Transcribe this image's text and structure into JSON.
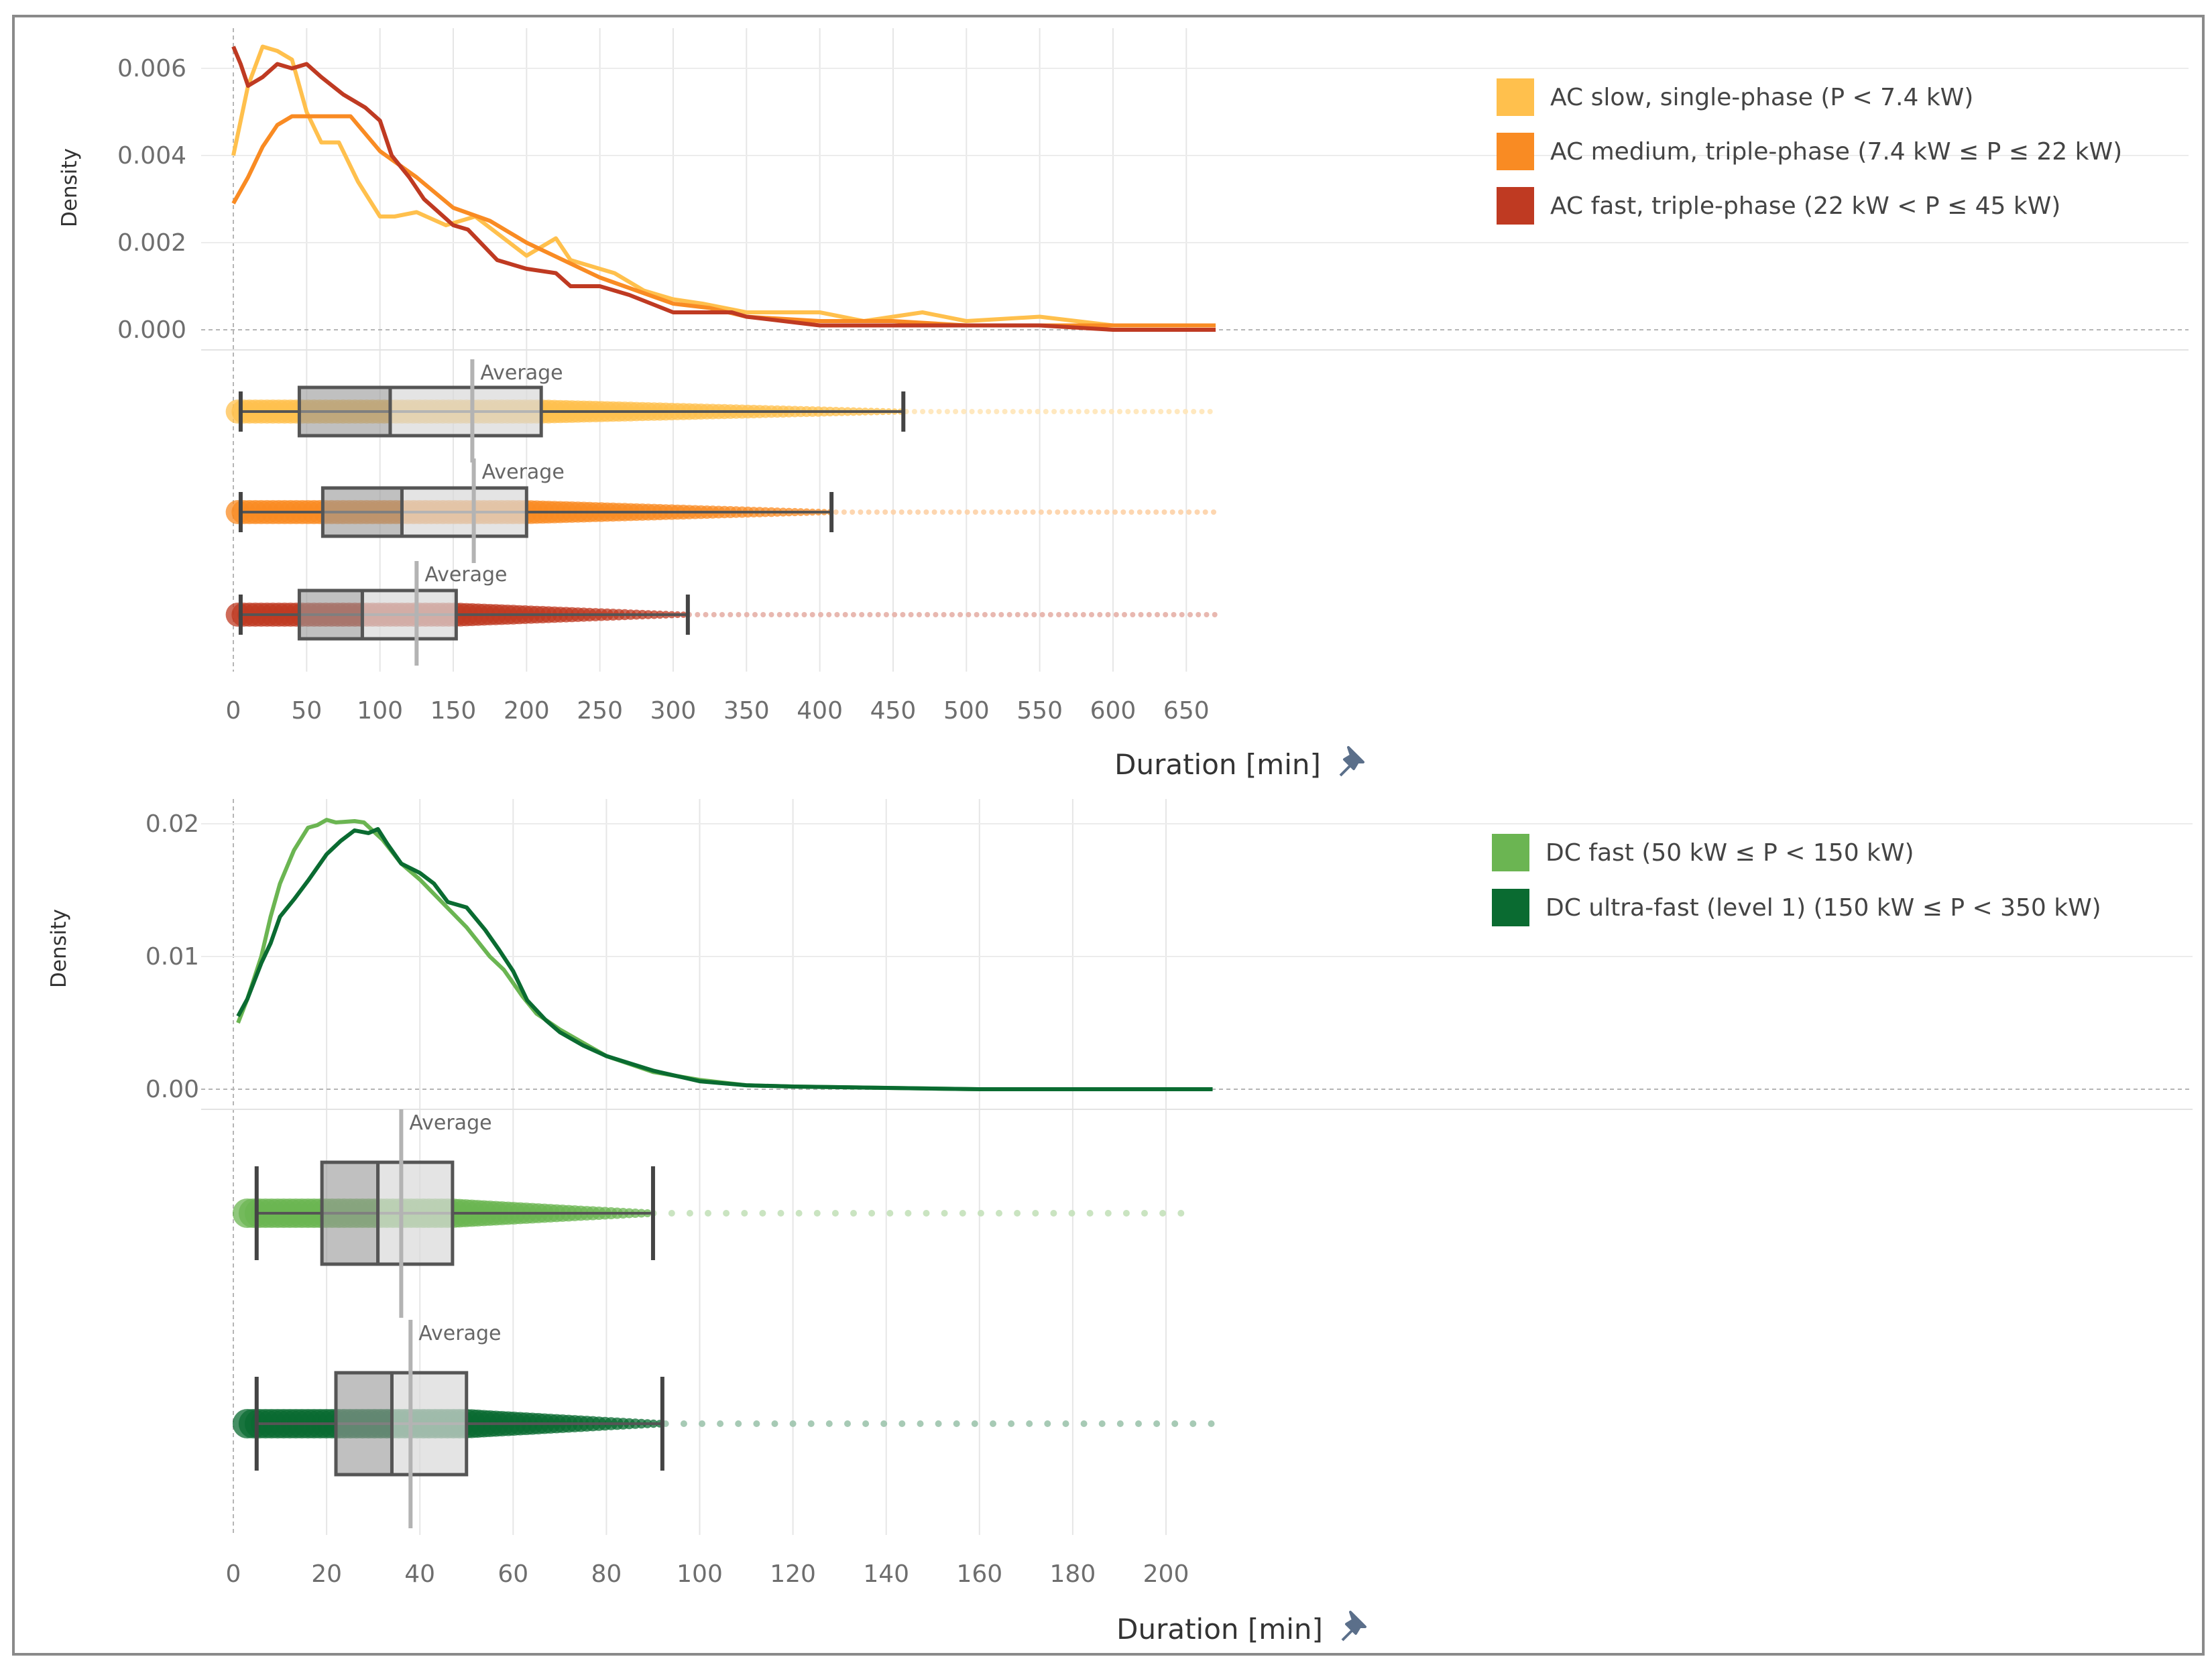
{
  "chart_data": [
    {
      "type": "line",
      "xlabel": "Duration [min]",
      "ylabel": "Density",
      "xlim": [
        0,
        670
      ],
      "ylim": [
        0,
        0.0065
      ],
      "x_ticks": [
        "0",
        "50",
        "100",
        "150",
        "200",
        "250",
        "300",
        "350",
        "400",
        "450",
        "500",
        "550",
        "600",
        "650"
      ],
      "y_ticks": [
        "0.000",
        "0.002",
        "0.004",
        "0.006"
      ],
      "grid": true,
      "legend_position": "top-right",
      "average_label": "Average",
      "series": [
        {
          "name": "AC slow, single-phase (P < 7.4 kW)",
          "color": "#FFC04D",
          "points": [
            [
              0,
              0.004
            ],
            [
              10,
              0.0056
            ],
            [
              20,
              0.0065
            ],
            [
              30,
              0.0064
            ],
            [
              40,
              0.0062
            ],
            [
              50,
              0.005
            ],
            [
              60,
              0.0043
            ],
            [
              72,
              0.0043
            ],
            [
              85,
              0.0034
            ],
            [
              100,
              0.0026
            ],
            [
              110,
              0.0026
            ],
            [
              125,
              0.0027
            ],
            [
              145,
              0.0024
            ],
            [
              165,
              0.0026
            ],
            [
              200,
              0.0017
            ],
            [
              220,
              0.0021
            ],
            [
              230,
              0.0016
            ],
            [
              260,
              0.0013
            ],
            [
              280,
              0.0009
            ],
            [
              300,
              0.0007
            ],
            [
              320,
              0.0006
            ],
            [
              350,
              0.0004
            ],
            [
              400,
              0.0004
            ],
            [
              430,
              0.0002
            ],
            [
              470,
              0.0004
            ],
            [
              500,
              0.0002
            ],
            [
              550,
              0.0003
            ],
            [
              600,
              0.0001
            ],
            [
              650,
              0.0001
            ],
            [
              670,
              0.0001
            ]
          ],
          "box": {
            "whisker_low": 5,
            "q1": 45,
            "median": 107,
            "q3": 210,
            "whisker_high": 457,
            "average": 163
          },
          "dots_until": 670
        },
        {
          "name": "AC medium, triple-phase (7.4 kW ≤ P ≤ 22 kW)",
          "color": "#F98B23",
          "points": [
            [
              0,
              0.0029
            ],
            [
              10,
              0.0035
            ],
            [
              20,
              0.0042
            ],
            [
              30,
              0.0047
            ],
            [
              40,
              0.0049
            ],
            [
              50,
              0.0049
            ],
            [
              70,
              0.0049
            ],
            [
              80,
              0.0049
            ],
            [
              100,
              0.0041
            ],
            [
              125,
              0.0035
            ],
            [
              150,
              0.0028
            ],
            [
              175,
              0.0025
            ],
            [
              200,
              0.002
            ],
            [
              225,
              0.0016
            ],
            [
              250,
              0.0012
            ],
            [
              275,
              0.0009
            ],
            [
              300,
              0.0006
            ],
            [
              325,
              0.0005
            ],
            [
              350,
              0.0003
            ],
            [
              400,
              0.0002
            ],
            [
              450,
              0.0002
            ],
            [
              500,
              0.0001
            ],
            [
              550,
              0.0001
            ],
            [
              600,
              0.0001
            ],
            [
              650,
              0.0001
            ],
            [
              670,
              0.0001
            ]
          ],
          "box": {
            "whisker_low": 5,
            "q1": 61,
            "median": 115,
            "q3": 200,
            "whisker_high": 408,
            "average": 164
          },
          "dots_until": 670
        },
        {
          "name": "AC fast, triple-phase (22 kW < P ≤ 45 kW)",
          "color": "#BF3A22",
          "points": [
            [
              0,
              0.0065
            ],
            [
              5,
              0.0061
            ],
            [
              10,
              0.0056
            ],
            [
              20,
              0.0058
            ],
            [
              30,
              0.0061
            ],
            [
              40,
              0.006
            ],
            [
              50,
              0.0061
            ],
            [
              60,
              0.0058
            ],
            [
              75,
              0.0054
            ],
            [
              90,
              0.0051
            ],
            [
              100,
              0.0048
            ],
            [
              108,
              0.004
            ],
            [
              120,
              0.0035
            ],
            [
              130,
              0.003
            ],
            [
              150,
              0.0024
            ],
            [
              160,
              0.0023
            ],
            [
              180,
              0.0016
            ],
            [
              200,
              0.0014
            ],
            [
              220,
              0.0013
            ],
            [
              230,
              0.001
            ],
            [
              250,
              0.001
            ],
            [
              270,
              0.0008
            ],
            [
              300,
              0.0004
            ],
            [
              340,
              0.0004
            ],
            [
              350,
              0.0003
            ],
            [
              400,
              0.0001
            ],
            [
              450,
              0.0001
            ],
            [
              500,
              0.0001
            ],
            [
              550,
              0.0001
            ],
            [
              600,
              0.0
            ],
            [
              650,
              0.0
            ],
            [
              670,
              0.0
            ]
          ],
          "box": {
            "whisker_low": 5,
            "q1": 45,
            "median": 88,
            "q3": 152,
            "whisker_high": 310,
            "average": 125
          },
          "dots_until": 670
        }
      ]
    },
    {
      "type": "line",
      "xlabel": "Duration [min]",
      "ylabel": "Density",
      "xlim": [
        0,
        210
      ],
      "ylim": [
        0,
        0.0205
      ],
      "x_ticks": [
        "0",
        "20",
        "40",
        "60",
        "80",
        "100",
        "120",
        "140",
        "160",
        "180",
        "200"
      ],
      "y_ticks": [
        "0.00",
        "0.01",
        "0.02"
      ],
      "grid": true,
      "legend_position": "top-right",
      "average_label": "Average",
      "series": [
        {
          "name": "DC fast (50 kW ≤ P < 150 kW)",
          "color": "#6BB552",
          "points": [
            [
              1,
              0.005
            ],
            [
              3,
              0.0068
            ],
            [
              6,
              0.01
            ],
            [
              8,
              0.013
            ],
            [
              10,
              0.0155
            ],
            [
              13,
              0.018
            ],
            [
              16,
              0.0197
            ],
            [
              18,
              0.0199
            ],
            [
              20,
              0.0203
            ],
            [
              22,
              0.0201
            ],
            [
              26,
              0.0202
            ],
            [
              28,
              0.0201
            ],
            [
              32,
              0.0188
            ],
            [
              36,
              0.017
            ],
            [
              40,
              0.0158
            ],
            [
              45,
              0.014
            ],
            [
              50,
              0.0122
            ],
            [
              55,
              0.01
            ],
            [
              58,
              0.009
            ],
            [
              62,
              0.007
            ],
            [
              65,
              0.0057
            ],
            [
              70,
              0.0045
            ],
            [
              75,
              0.0035
            ],
            [
              80,
              0.0025
            ],
            [
              90,
              0.0013
            ],
            [
              100,
              0.0007
            ],
            [
              110,
              0.0003
            ],
            [
              120,
              0.0002
            ],
            [
              140,
              0.0001
            ],
            [
              160,
              0.0
            ],
            [
              180,
              0.0
            ],
            [
              210,
              0.0
            ]
          ],
          "box": {
            "whisker_low": 5,
            "q1": 19,
            "median": 31,
            "q3": 47,
            "whisker_high": 90,
            "average": 36
          },
          "dots_until": 206
        },
        {
          "name": "DC ultra-fast (level 1) (150 kW ≤ P < 350 kW)",
          "color": "#0A6B31",
          "points": [
            [
              1,
              0.0055
            ],
            [
              3,
              0.0068
            ],
            [
              6,
              0.0095
            ],
            [
              8,
              0.011
            ],
            [
              10,
              0.013
            ],
            [
              13,
              0.0143
            ],
            [
              16,
              0.0157
            ],
            [
              20,
              0.0177
            ],
            [
              23,
              0.0187
            ],
            [
              26,
              0.0195
            ],
            [
              29,
              0.0193
            ],
            [
              31,
              0.0196
            ],
            [
              33,
              0.0185
            ],
            [
              36,
              0.017
            ],
            [
              40,
              0.0163
            ],
            [
              43,
              0.0155
            ],
            [
              46,
              0.0141
            ],
            [
              50,
              0.0137
            ],
            [
              54,
              0.012
            ],
            [
              57,
              0.0105
            ],
            [
              60,
              0.0089
            ],
            [
              63,
              0.0067
            ],
            [
              67,
              0.0052
            ],
            [
              70,
              0.0043
            ],
            [
              75,
              0.0033
            ],
            [
              80,
              0.0025
            ],
            [
              90,
              0.0014
            ],
            [
              100,
              0.0006
            ],
            [
              110,
              0.0003
            ],
            [
              120,
              0.0002
            ],
            [
              140,
              0.0001
            ],
            [
              160,
              0.0
            ],
            [
              180,
              0.0
            ],
            [
              210,
              0.0
            ]
          ],
          "box": {
            "whisker_low": 5,
            "q1": 22,
            "median": 34,
            "q3": 50,
            "whisker_high": 92,
            "average": 38
          },
          "dots_until": 210
        }
      ]
    }
  ]
}
